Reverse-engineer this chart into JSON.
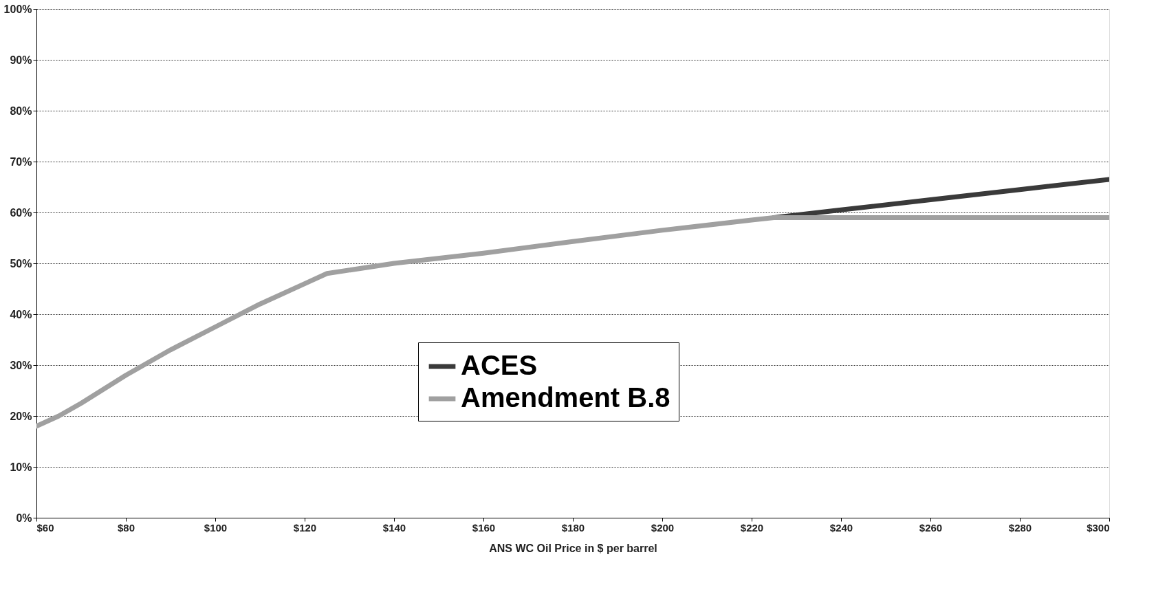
{
  "chart_data": {
    "type": "line",
    "xlabel": "ANS WC Oil Price in $ per barrel",
    "series": [
      {
        "name": "ACES",
        "color": "#3a3a3a",
        "x": [
          225,
          240,
          260,
          280,
          300
        ],
        "values": [
          59,
          60.5,
          62.5,
          64.5,
          66.5
        ]
      },
      {
        "name": "Amendment B.8",
        "color": "#a0a0a0",
        "x": [
          60,
          65,
          70,
          80,
          90,
          100,
          110,
          120,
          125,
          140,
          160,
          180,
          200,
          220,
          225,
          240,
          260,
          280,
          300
        ],
        "values": [
          18,
          20,
          22.5,
          28,
          33,
          37.5,
          42,
          46,
          48,
          50,
          52,
          54.3,
          56.5,
          58.5,
          59,
          59,
          59,
          59,
          59
        ]
      }
    ],
    "xlim": [
      60,
      300
    ],
    "xticks": [
      {
        "value": 60,
        "label": "$60"
      },
      {
        "value": 80,
        "label": "$80"
      },
      {
        "value": 100,
        "label": "$100"
      },
      {
        "value": 120,
        "label": "$120"
      },
      {
        "value": 140,
        "label": "$140"
      },
      {
        "value": 160,
        "label": "$160"
      },
      {
        "value": 180,
        "label": "$180"
      },
      {
        "value": 200,
        "label": "$200"
      },
      {
        "value": 220,
        "label": "$220"
      },
      {
        "value": 240,
        "label": "$240"
      },
      {
        "value": 260,
        "label": "$260"
      },
      {
        "value": 280,
        "label": "$280"
      },
      {
        "value": 300,
        "label": "$300"
      }
    ],
    "ylim": [
      0,
      100
    ],
    "yticks": [
      {
        "value": 0,
        "label": "0%"
      },
      {
        "value": 10,
        "label": "10%"
      },
      {
        "value": 20,
        "label": "20%"
      },
      {
        "value": 30,
        "label": "30%"
      },
      {
        "value": 40,
        "label": "40%"
      },
      {
        "value": 50,
        "label": "50%"
      },
      {
        "value": 60,
        "label": "60%"
      },
      {
        "value": 70,
        "label": "70%"
      },
      {
        "value": 80,
        "label": "80%"
      },
      {
        "value": 90,
        "label": "90%"
      },
      {
        "value": 100,
        "label": "100%"
      }
    ],
    "grid": "y",
    "legend": "bottom",
    "line_style": "solid"
  }
}
